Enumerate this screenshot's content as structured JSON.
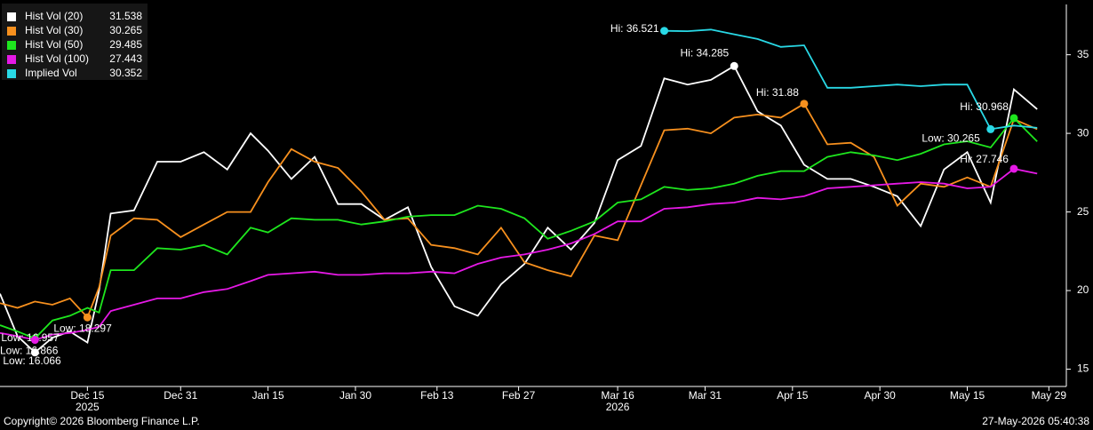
{
  "chart_data": {
    "type": "line",
    "background": "#000000",
    "x": [
      "2025-11-30",
      "2025-12-03",
      "2025-12-06",
      "2025-12-09",
      "2025-12-12",
      "2025-12-15",
      "2025-12-17",
      "2025-12-19",
      "2025-12-23",
      "2025-12-27",
      "2025-12-31",
      "2026-01-04",
      "2026-01-08",
      "2026-01-12",
      "2026-01-15",
      "2026-01-19",
      "2026-01-23",
      "2026-01-27",
      "2026-01-31",
      "2026-02-04",
      "2026-02-08",
      "2026-02-12",
      "2026-02-16",
      "2026-02-20",
      "2026-02-24",
      "2026-02-28",
      "2026-03-04",
      "2026-03-08",
      "2026-03-12",
      "2026-03-16",
      "2026-03-20",
      "2026-03-24",
      "2026-03-28",
      "2026-04-01",
      "2026-04-05",
      "2026-04-09",
      "2026-04-13",
      "2026-04-17",
      "2026-04-21",
      "2026-04-25",
      "2026-04-29",
      "2026-05-03",
      "2026-05-07",
      "2026-05-11",
      "2026-05-15",
      "2026-05-19",
      "2026-05-23",
      "2026-05-27"
    ],
    "series": [
      {
        "name": "Hist Vol (20)",
        "color": "#ffffff",
        "values": [
          19.8,
          17.1,
          16.066,
          17.0,
          17.4,
          16.7,
          20.0,
          24.9,
          25.1,
          28.2,
          28.2,
          28.8,
          27.7,
          30.0,
          28.9,
          27.1,
          28.5,
          25.5,
          25.5,
          24.5,
          25.3,
          21.5,
          19.0,
          18.4,
          20.4,
          21.7,
          24.0,
          22.6,
          24.3,
          28.3,
          29.2,
          33.5,
          33.1,
          33.4,
          34.285,
          31.4,
          30.5,
          28.0,
          27.1,
          27.1,
          26.6,
          26.0,
          24.1,
          27.7,
          28.8,
          25.6,
          32.8,
          31.538
        ]
      },
      {
        "name": "Hist Vol (30)",
        "color": "#f7901e",
        "values": [
          19.2,
          18.9,
          19.3,
          19.1,
          19.5,
          18.297,
          20.2,
          23.5,
          24.6,
          24.5,
          23.4,
          24.2,
          25.0,
          25.0,
          26.9,
          29.0,
          28.2,
          27.8,
          26.3,
          24.5,
          24.6,
          22.9,
          22.7,
          22.3,
          24.0,
          21.8,
          21.3,
          20.9,
          23.5,
          23.2,
          26.7,
          30.2,
          30.3,
          30.0,
          31.0,
          31.2,
          31.0,
          31.88,
          29.3,
          29.4,
          28.5,
          25.4,
          26.8,
          26.6,
          27.2,
          26.6,
          30.9,
          30.265
        ]
      },
      {
        "name": "Hist Vol (50)",
        "color": "#1ee61e",
        "values": [
          17.8,
          17.4,
          16.957,
          18.1,
          18.4,
          18.9,
          18.6,
          21.3,
          21.3,
          22.7,
          22.6,
          22.9,
          22.3,
          24.0,
          23.7,
          24.6,
          24.5,
          24.5,
          24.2,
          24.4,
          24.7,
          24.8,
          24.8,
          25.4,
          25.2,
          24.6,
          23.3,
          23.8,
          24.4,
          25.6,
          25.8,
          26.6,
          26.4,
          26.5,
          26.8,
          27.3,
          27.6,
          27.6,
          28.5,
          28.8,
          28.6,
          28.3,
          28.7,
          29.3,
          29.5,
          29.1,
          30.968,
          29.485
        ]
      },
      {
        "name": "Hist Vol (100)",
        "color": "#e619e6",
        "values": [
          17.3,
          17.1,
          16.866,
          17.2,
          17.3,
          17.5,
          17.7,
          18.7,
          19.1,
          19.5,
          19.5,
          19.9,
          20.1,
          20.6,
          21.0,
          21.1,
          21.2,
          21.0,
          21.0,
          21.1,
          21.1,
          21.2,
          21.1,
          21.7,
          22.1,
          22.3,
          22.6,
          23.0,
          23.6,
          24.4,
          24.4,
          25.2,
          25.3,
          25.5,
          25.6,
          25.9,
          25.8,
          26.0,
          26.5,
          26.6,
          26.7,
          26.8,
          26.9,
          26.8,
          26.5,
          26.6,
          27.746,
          27.443
        ]
      },
      {
        "name": "Implied Vol",
        "color": "#29d9e6",
        "values": [
          null,
          null,
          null,
          null,
          null,
          null,
          null,
          null,
          null,
          null,
          null,
          null,
          null,
          null,
          null,
          null,
          null,
          null,
          null,
          null,
          null,
          null,
          null,
          null,
          null,
          null,
          null,
          null,
          null,
          null,
          null,
          36.521,
          36.5,
          36.6,
          36.3,
          36.0,
          35.5,
          35.6,
          32.9,
          32.9,
          33.0,
          33.1,
          33.0,
          33.1,
          33.1,
          30.265,
          30.5,
          30.352
        ]
      }
    ],
    "annotations": [
      {
        "series": 0,
        "label": "Low: 16.066",
        "x": "2025-12-06",
        "value": 16.066
      },
      {
        "series": 0,
        "label": "Hi: 34.285",
        "x": "2026-04-05",
        "value": 34.285
      },
      {
        "series": 1,
        "label": "Low: 18.297",
        "x": "2025-12-15",
        "value": 18.297
      },
      {
        "series": 1,
        "label": "Hi: 31.88",
        "x": "2026-04-17",
        "value": 31.88
      },
      {
        "series": 2,
        "label": "Low: 16.957",
        "x": "2025-12-06",
        "value": 16.957
      },
      {
        "series": 2,
        "label": "Hi: 30.968",
        "x": "2026-05-23",
        "value": 30.968
      },
      {
        "series": 3,
        "label": "Low: 16.866",
        "x": "2025-12-06",
        "value": 16.866
      },
      {
        "series": 3,
        "label": "Hi: 27.746",
        "x": "2026-05-23",
        "value": 27.746
      },
      {
        "series": 4,
        "label": "Hi: 36.521",
        "x": "2026-03-24",
        "value": 36.521
      },
      {
        "series": 4,
        "label": "Low: 30.265",
        "x": "2026-05-19",
        "value": 30.265
      }
    ],
    "xlim": [
      "2025-11-30",
      "2026-06-01"
    ],
    "xticks": [
      {
        "value": "2025-12-15",
        "label": "Dec 15"
      },
      {
        "value": "2025-12-31",
        "label": "Dec 31"
      },
      {
        "value": "2026-01-15",
        "label": "Jan 15"
      },
      {
        "value": "2026-01-30",
        "label": "Jan 30"
      },
      {
        "value": "2026-02-13",
        "label": "Feb 13"
      },
      {
        "value": "2026-02-27",
        "label": "Feb 27"
      },
      {
        "value": "2026-03-16",
        "label": "Mar 16"
      },
      {
        "value": "2026-03-31",
        "label": "Mar 31"
      },
      {
        "value": "2026-04-15",
        "label": "Apr 15"
      },
      {
        "value": "2026-04-30",
        "label": "Apr 30"
      },
      {
        "value": "2026-05-15",
        "label": "May 15"
      },
      {
        "value": "2026-05-29",
        "label": "May 29"
      }
    ],
    "x_year_labels": [
      {
        "value": "2025-12-15",
        "label": "2025"
      },
      {
        "value": "2026-03-16",
        "label": "2026"
      }
    ],
    "ylim": [
      13.9,
      38.2
    ],
    "yticks": [
      15,
      20,
      25,
      30,
      35
    ],
    "legend": "top-left",
    "copyright": "Copyright© 2026 Bloomberg Finance L.P.",
    "timestamp": "27-May-2026 05:40:38"
  }
}
